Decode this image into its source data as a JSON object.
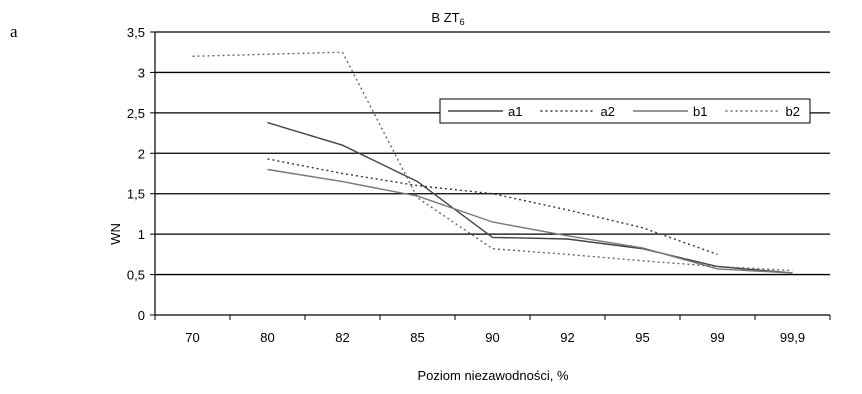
{
  "panel_label": "a",
  "chart_data": {
    "type": "line",
    "title": "B ZT",
    "title_subscript": "6",
    "xlabel": "Poziom niezawodności, %",
    "ylabel": "WN",
    "categories": [
      "70",
      "80",
      "82",
      "85",
      "90",
      "92",
      "95",
      "99",
      "99,9"
    ],
    "y_ticks": [
      "0",
      "0,5",
      "1",
      "1,5",
      "2",
      "2,5",
      "3",
      "3,5"
    ],
    "ylim": [
      0,
      3.5
    ],
    "grid": "horizontal",
    "legend_position": "top-right",
    "series": [
      {
        "name": "a1",
        "style": "solid",
        "color": "#444444",
        "values": [
          null,
          2.38,
          2.1,
          1.65,
          0.96,
          0.94,
          0.82,
          0.6,
          0.52
        ]
      },
      {
        "name": "a2",
        "style": "dotted",
        "color": "#333333",
        "values": [
          null,
          1.93,
          1.75,
          1.6,
          1.5,
          1.3,
          1.08,
          0.75,
          null
        ]
      },
      {
        "name": "b1",
        "style": "solid",
        "color": "#777777",
        "values": [
          null,
          1.8,
          1.65,
          1.47,
          1.15,
          0.98,
          0.83,
          0.57,
          0.52
        ]
      },
      {
        "name": "b2",
        "style": "dotted",
        "color": "#666666",
        "values": [
          3.2,
          null,
          3.25,
          1.45,
          0.82,
          0.75,
          0.67,
          0.6,
          0.55
        ]
      }
    ]
  }
}
